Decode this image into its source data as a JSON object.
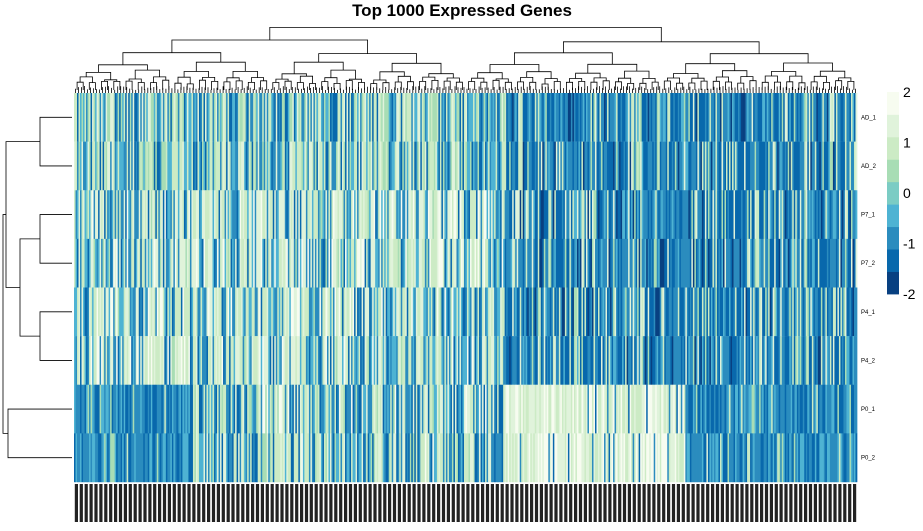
{
  "chart_data": {
    "type": "heatmap",
    "title": "Top 1000 Expressed Genes",
    "rows": [
      "AD_1",
      "AD_2",
      "P7_1",
      "P7_2",
      "P4_1",
      "P4_2",
      "P0_1",
      "P0_2"
    ],
    "n_columns": 1000,
    "color_scale": {
      "min": -2,
      "max": 2,
      "ticks": [
        2,
        1,
        0,
        -1,
        -2
      ],
      "colors": [
        "#084081",
        "#0868ac",
        "#2b8cbe",
        "#4eb3d3",
        "#7bccc4",
        "#a8ddb5",
        "#ccebc5",
        "#e0f3db",
        "#f7fcf0"
      ]
    },
    "row_dendrogram_order": [
      "AD_1",
      "AD_2",
      "P7_1",
      "P7_2",
      "P4_1",
      "P4_2",
      "P0_1",
      "P0_2"
    ],
    "column_dendrogram": "present",
    "column_labels": "dense, unreadable gene identifiers (rotated 90°)"
  }
}
